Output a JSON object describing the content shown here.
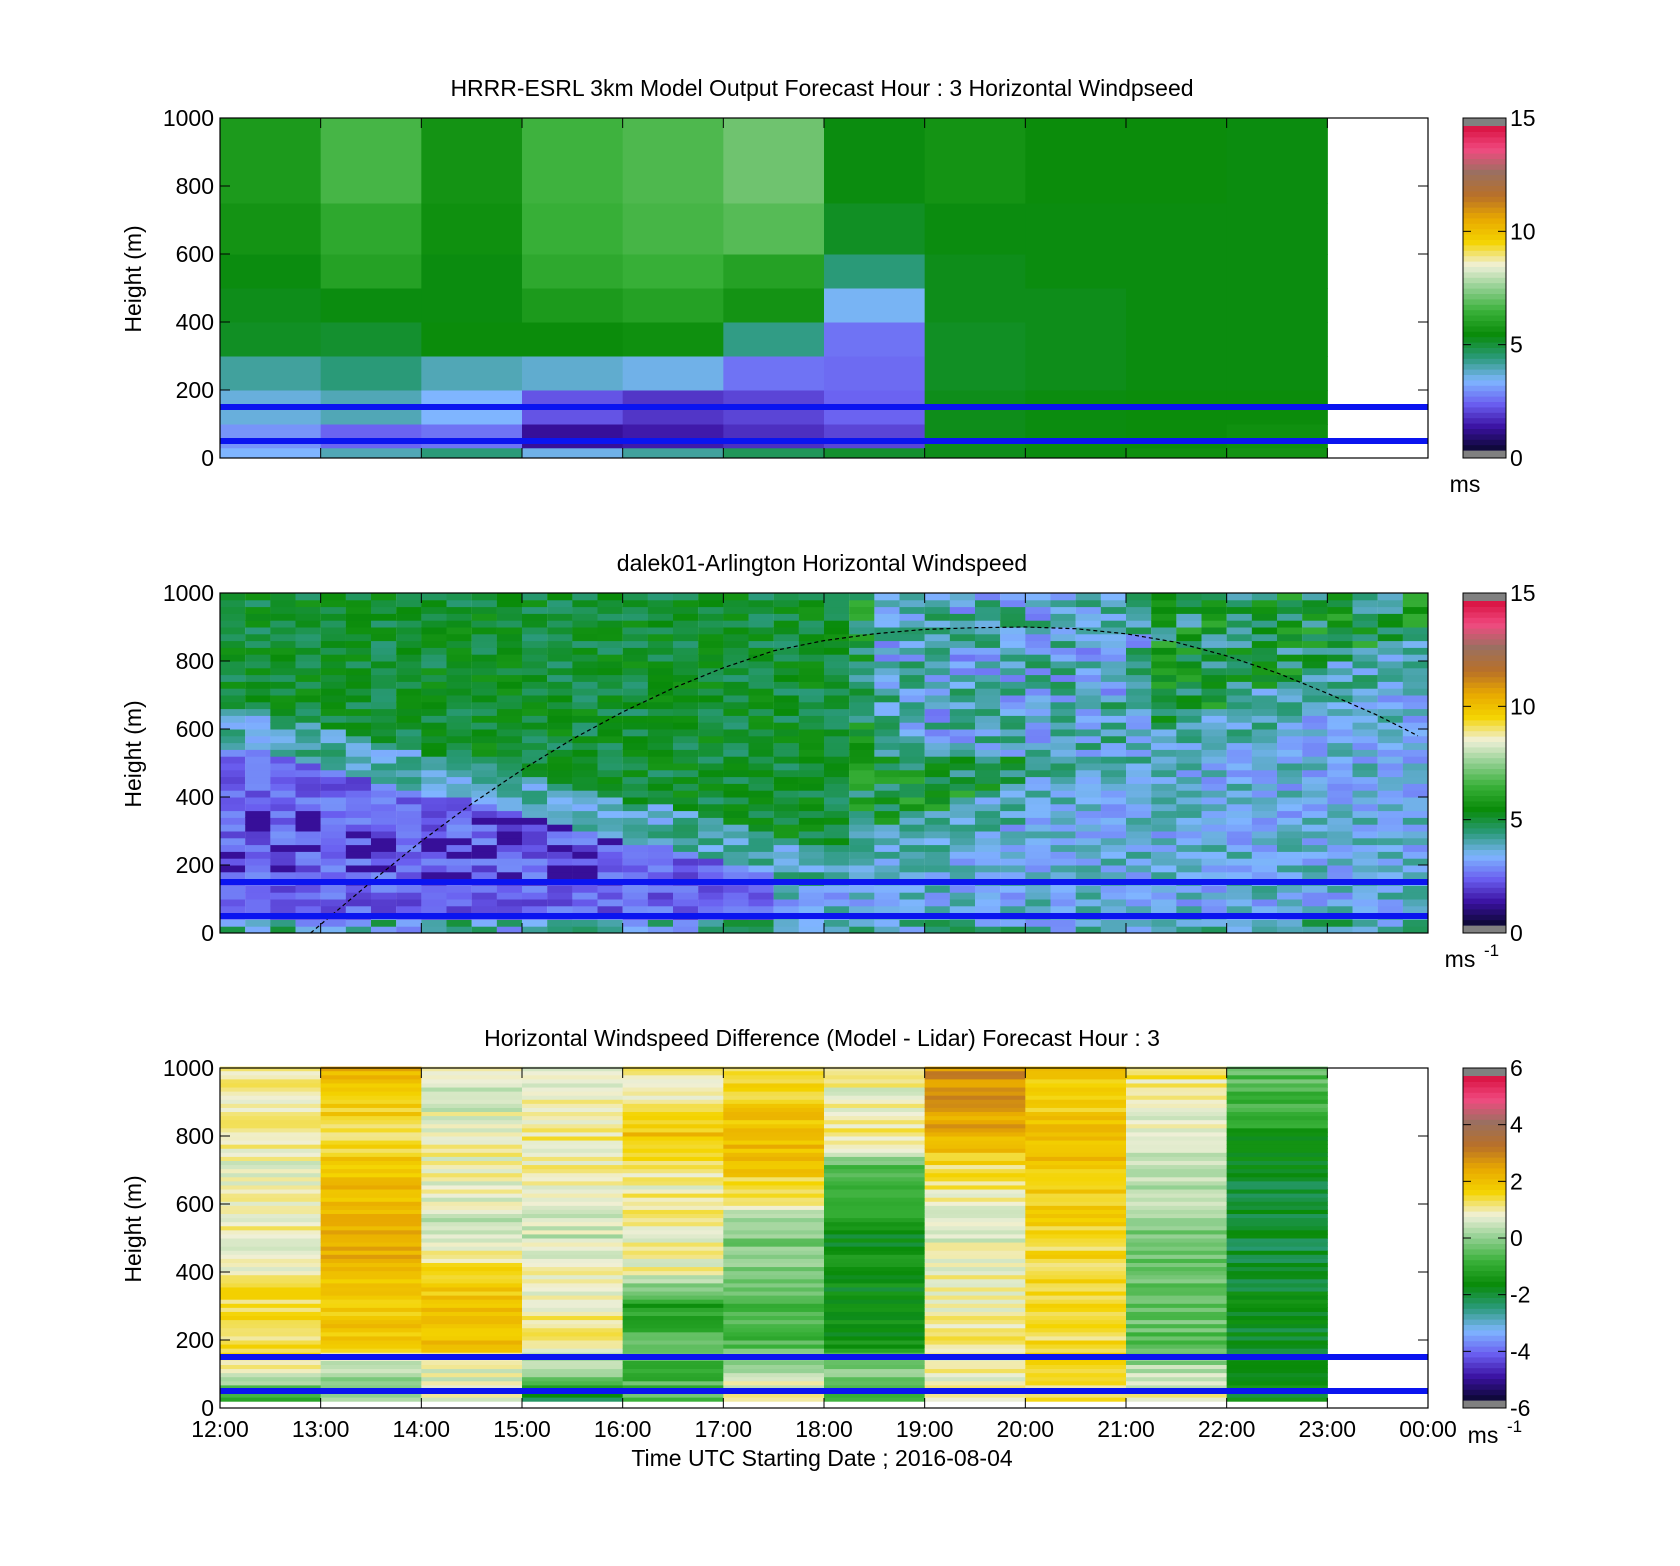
{
  "chart_data": [
    {
      "type": "heatmap",
      "title": "HRRR-ESRL 3km Model Output   Forecast Hour : 3 Horizontal Windpseed",
      "ylabel": "Height (m)",
      "xlabel": "",
      "xlim": [
        "12:00",
        "00:00"
      ],
      "ylim": [
        0,
        1000
      ],
      "y_ticks": [
        "0",
        "200",
        "400",
        "600",
        "800",
        "1000"
      ],
      "x_ticks": [
        "12:00",
        "13:00",
        "14:00",
        "15:00",
        "16:00",
        "17:00",
        "18:00",
        "19:00",
        "20:00",
        "21:00",
        "22:00",
        "23:00",
        "00:00"
      ],
      "x_ticklabels_shown": false,
      "colorbar": {
        "ticks": [
          "0",
          "5",
          "10",
          "15"
        ],
        "range": [
          0,
          15
        ],
        "units": "ms",
        "units_exp": ""
      },
      "colormap": [
        "#808080",
        "#0a0830",
        "#3a10a0",
        "#6a5ef0",
        "#7fb6ff",
        "#2a9a7a",
        "#098b09",
        "#38b038",
        "#8fcf8f",
        "#f0f0d8",
        "#f4d400",
        "#e8a800",
        "#b87028",
        "#9a7060",
        "#f04a80",
        "#d81040",
        "#808080"
      ],
      "reference_lines_m": [
        150,
        50
      ],
      "reference_line_color": "#0a14f0",
      "columns_hour": [
        12,
        13,
        14,
        15,
        16,
        17,
        18,
        19,
        20,
        21,
        22
      ],
      "windspeed_ms": [
        [
          3.2,
          3.8,
          4.3,
          3.4,
          4.0,
          4.6,
          5.0,
          5.2,
          5.3,
          5.5,
          5.6
        ],
        [
          2.8,
          2.2,
          2.4,
          1.0,
          1.2,
          1.5,
          1.8,
          5.2,
          5.3,
          5.4,
          5.5
        ],
        [
          3.5,
          3.8,
          3.2,
          2.0,
          1.6,
          1.8,
          2.2,
          5.2,
          5.3,
          5.4,
          5.4
        ],
        [
          4.0,
          4.3,
          3.8,
          3.6,
          3.4,
          2.4,
          2.3,
          5.1,
          5.2,
          5.3,
          5.3
        ],
        [
          5.1,
          5.0,
          5.4,
          5.4,
          5.5,
          4.2,
          2.4,
          5.1,
          5.2,
          5.3,
          5.3
        ],
        [
          5.2,
          5.3,
          5.3,
          5.8,
          6.0,
          5.6,
          3.3,
          5.2,
          5.2,
          5.3,
          5.3
        ],
        [
          5.3,
          6.0,
          5.3,
          6.2,
          6.4,
          6.0,
          4.3,
          5.2,
          5.3,
          5.3,
          5.3
        ],
        [
          5.6,
          6.2,
          5.5,
          6.4,
          6.6,
          6.8,
          5.1,
          5.3,
          5.3,
          5.3,
          5.3
        ],
        [
          5.8,
          6.6,
          5.6,
          6.5,
          6.7,
          7.1,
          5.3,
          5.6,
          5.4,
          5.4,
          5.3
        ]
      ]
    },
    {
      "type": "heatmap",
      "title": "dalek01-Arlington  Horizontal Windspeed",
      "ylabel": "Height (m)",
      "xlabel": "",
      "xlim": [
        "12:00",
        "00:00"
      ],
      "ylim": [
        0,
        1000
      ],
      "y_ticks": [
        "0",
        "200",
        "400",
        "600",
        "800",
        "1000"
      ],
      "x_ticks": [
        "12:00",
        "13:00",
        "14:00",
        "15:00",
        "16:00",
        "17:00",
        "18:00",
        "19:00",
        "20:00",
        "21:00",
        "22:00",
        "23:00",
        "00:00"
      ],
      "x_ticklabels_shown": false,
      "colorbar": {
        "ticks": [
          "0",
          "5",
          "10",
          "15"
        ],
        "range": [
          0,
          15
        ],
        "units": "ms",
        "units_exp": "-1"
      },
      "colormap": [
        "#808080",
        "#0a0830",
        "#3a10a0",
        "#6a5ef0",
        "#7fb6ff",
        "#2a9a7a",
        "#098b09",
        "#38b038",
        "#8fcf8f",
        "#f0f0d8",
        "#f4d400",
        "#e8a800",
        "#b87028",
        "#9a7060",
        "#f04a80",
        "#d81040",
        "#808080"
      ],
      "reference_lines_m": [
        150,
        50
      ],
      "reference_line_color": "#0a14f0",
      "time_step_hours": 0.25,
      "columns_hour": [
        12.0,
        12.25,
        12.5,
        12.75,
        13.0,
        13.25,
        13.5,
        13.75,
        14.0,
        14.25,
        14.5,
        14.75,
        15.0,
        15.25,
        15.5,
        15.75,
        16.0,
        16.25,
        16.5,
        16.75,
        17.0,
        17.25,
        17.5,
        17.75,
        18.0,
        18.25,
        18.5,
        18.75,
        19.0,
        19.25,
        19.5,
        19.75,
        20.0,
        20.25,
        20.5,
        20.75,
        21.0,
        21.25,
        21.5,
        21.75,
        22.0,
        22.25,
        22.5,
        22.75,
        23.0,
        23.25,
        23.5,
        23.75
      ],
      "mixing_layer_curve": {
        "style": "dashed",
        "color": "#000000",
        "hour": [
          12.9,
          13.5,
          14.0,
          14.5,
          15.0,
          15.5,
          16.0,
          16.5,
          17.0,
          17.5,
          18.0,
          18.5,
          19.0,
          19.5,
          20.0,
          20.5,
          21.0,
          21.5,
          22.0,
          22.5,
          23.0,
          23.5,
          23.9
        ],
        "height_m": [
          0,
          150,
          270,
          380,
          480,
          570,
          650,
          720,
          780,
          830,
          860,
          880,
          893,
          898,
          900,
          895,
          880,
          855,
          815,
          765,
          705,
          640,
          580
        ]
      }
    },
    {
      "type": "heatmap",
      "title": "Horizontal Windspeed Difference (Model - Lidar) Forecast Hour : 3",
      "ylabel": "Height (m)",
      "xlabel": "Time UTC  Starting Date ; 2016-08-04",
      "xlim": [
        "12:00",
        "00:00"
      ],
      "ylim": [
        0,
        1000
      ],
      "y_ticks": [
        "0",
        "200",
        "400",
        "600",
        "800",
        "1000"
      ],
      "x_ticks": [
        "12:00",
        "13:00",
        "14:00",
        "15:00",
        "16:00",
        "17:00",
        "18:00",
        "19:00",
        "20:00",
        "21:00",
        "22:00",
        "23:00",
        "00:00"
      ],
      "x_ticklabels_shown": true,
      "colorbar": {
        "ticks": [
          "-6",
          "-4",
          "-2",
          "0",
          "2",
          "4",
          "6"
        ],
        "range": [
          -6,
          6
        ],
        "units": "ms",
        "units_exp": "-1"
      },
      "colormap": [
        "#808080",
        "#0a0830",
        "#3a10a0",
        "#6a5ef0",
        "#7fb6ff",
        "#2a9a7a",
        "#098b09",
        "#38b038",
        "#8fcf8f",
        "#f0f0d8",
        "#f4d400",
        "#e8a800",
        "#b87028",
        "#9a7060",
        "#f04a80",
        "#d81040",
        "#808080"
      ],
      "reference_lines_m": [
        150,
        50
      ],
      "reference_line_color": "#0a14f0",
      "columns_hour": [
        12,
        13,
        14,
        15,
        16,
        17,
        18,
        19,
        20,
        21,
        22
      ],
      "profile_levels_m": [
        30,
        100,
        200,
        300,
        400,
        500,
        600,
        700,
        800,
        900,
        1000
      ],
      "difference_ms": [
        [
          -1.0,
          0.3,
          0.8,
          -2.2,
          -0.5,
          1.2,
          -0.6,
          1.2,
          1.4,
          1.1,
          -1.8
        ],
        [
          1.0,
          0.2,
          0.8,
          0.1,
          -0.8,
          0.4,
          -0.2,
          0.9,
          1.5,
          0.3,
          -1.8
        ],
        [
          1.5,
          2.0,
          2.2,
          1.2,
          -0.6,
          -0.9,
          -1.7,
          1.2,
          1.5,
          -0.5,
          -1.9
        ],
        [
          1.6,
          1.8,
          2.0,
          1.1,
          -1.4,
          -0.6,
          -1.8,
          0.9,
          1.6,
          -0.3,
          -1.9
        ],
        [
          1.0,
          2.3,
          1.5,
          0.9,
          1.0,
          -0.2,
          -1.6,
          0.9,
          1.5,
          -0.4,
          -2.0
        ],
        [
          1.0,
          2.4,
          0.4,
          0.5,
          0.9,
          -0.1,
          -1.7,
          0.8,
          1.6,
          -0.2,
          -2.1
        ],
        [
          1.0,
          2.2,
          0.8,
          0.8,
          1.1,
          1.0,
          -1.0,
          1.0,
          1.8,
          0.4,
          -2.0
        ],
        [
          0.9,
          2.0,
          1.0,
          1.0,
          1.0,
          2.0,
          -0.5,
          1.4,
          2.0,
          0.6,
          -1.9
        ],
        [
          1.0,
          1.5,
          1.0,
          1.2,
          2.0,
          2.2,
          1.2,
          2.5,
          2.1,
          0.6,
          -1.4
        ],
        [
          1.0,
          2.0,
          0.6,
          1.0,
          1.2,
          1.8,
          0.8,
          2.8,
          1.6,
          1.0,
          -0.8
        ],
        [
          1.1,
          2.4,
          1.0,
          1.0,
          1.2,
          1.4,
          1.2,
          3.0,
          1.8,
          1.4,
          -0.4
        ]
      ]
    }
  ]
}
